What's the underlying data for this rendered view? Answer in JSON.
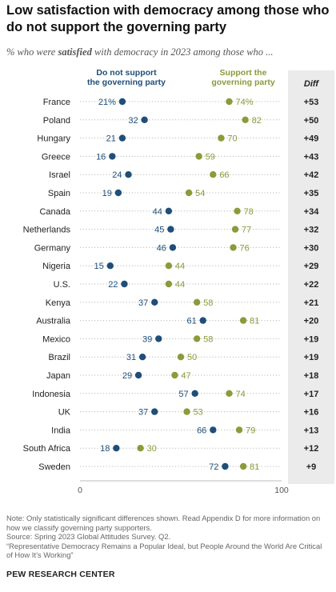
{
  "title": "Low satisfaction with democracy among those who do not support the governing party",
  "subtitle": {
    "prefix": "% who were ",
    "emphasis": "satisfied",
    "suffix": " with democracy in 2023 among those who ..."
  },
  "colors": {
    "not_support": "#1f4e79",
    "support": "#8a9b3a",
    "diff_bg": "#ebebeb",
    "dotted": "#b8b8b8"
  },
  "chart_data": {
    "type": "scatter",
    "subtype": "dot-plot",
    "xlim": [
      0,
      100
    ],
    "x_ticks": [
      "0",
      "100"
    ],
    "diff_header": "Diff",
    "categories": [
      "France",
      "Poland",
      "Hungary",
      "Greece",
      "Israel",
      "Spain",
      "Canada",
      "Netherlands",
      "Germany",
      "Nigeria",
      "U.S.",
      "Kenya",
      "Australia",
      "Mexico",
      "Brazil",
      "Japan",
      "Indonesia",
      "UK",
      "India",
      "South Africa",
      "Sweden"
    ],
    "series": [
      {
        "name": "Do not support the governing party",
        "values": [
          21,
          32,
          21,
          16,
          24,
          19,
          44,
          45,
          46,
          15,
          22,
          37,
          61,
          39,
          31,
          29,
          57,
          37,
          66,
          18,
          72
        ],
        "labels": [
          "21%",
          "32",
          "21",
          "16",
          "24",
          "19",
          "44",
          "45",
          "46",
          "15",
          "22",
          "37",
          "61",
          "39",
          "31",
          "29",
          "57",
          "37",
          "66",
          "18",
          "72"
        ]
      },
      {
        "name": "Support the governing party",
        "values": [
          74,
          82,
          70,
          59,
          66,
          54,
          78,
          77,
          76,
          44,
          44,
          58,
          81,
          58,
          50,
          47,
          74,
          53,
          79,
          30,
          81
        ],
        "labels": [
          "74%",
          "82",
          "70",
          "59",
          "66",
          "54",
          "78",
          "77",
          "76",
          "44",
          "44",
          "58",
          "81",
          "58",
          "50",
          "47",
          "74",
          "53",
          "79",
          "30",
          "81"
        ]
      }
    ],
    "diff": [
      "+53",
      "+50",
      "+49",
      "+43",
      "+42",
      "+35",
      "+34",
      "+32",
      "+30",
      "+29",
      "+22",
      "+21",
      "+20",
      "+19",
      "+19",
      "+18",
      "+17",
      "+16",
      "+13",
      "+12",
      "+9"
    ]
  },
  "notes": {
    "note": "Note: Only statistically significant differences shown. Read Appendix D for more information on how we classify governing party supporters.",
    "source": "Source: Spring 2023 Global Attitudes Survey. Q2.",
    "report": "“Representative Democracy Remains a Popular Ideal, but People Around the World Are Critical of How It’s Working”"
  },
  "org": "PEW RESEARCH CENTER"
}
